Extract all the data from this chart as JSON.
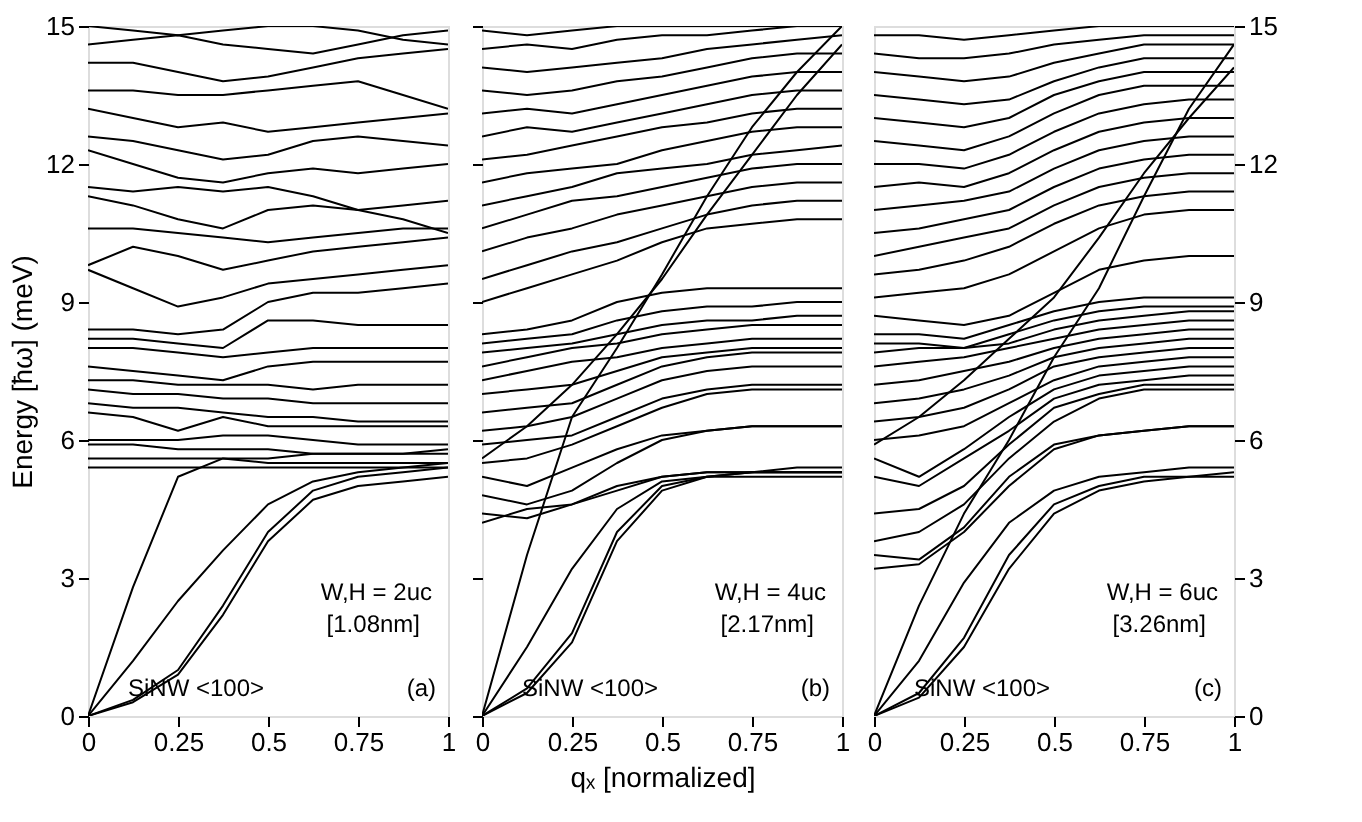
{
  "chart_data": [
    {
      "type": "line",
      "ylabel": "Energy [ħω] (meV)",
      "x": [
        0,
        0.125,
        0.25,
        0.375,
        0.5,
        0.625,
        0.75,
        0.875,
        1
      ],
      "xlim": [
        0,
        1
      ],
      "xticks": [
        0,
        0.25,
        0.5,
        0.75,
        1
      ],
      "ylim": [
        0,
        15
      ],
      "yticks": [
        0,
        3,
        6,
        9,
        12,
        15
      ],
      "grid": false,
      "marker": "none",
      "line_style": "solid",
      "annotations": [
        "W,H = 2uc",
        "[1.08nm]",
        "SiNW <100>",
        "(a)"
      ],
      "series": [
        {
          "color": "#000000",
          "values": [
            0,
            0.3,
            0.9,
            2.2,
            3.8,
            4.7,
            5.0,
            5.1,
            5.2
          ]
        },
        {
          "color": "#000000",
          "values": [
            0,
            0.35,
            1.0,
            2.4,
            4.0,
            4.9,
            5.2,
            5.3,
            5.4
          ]
        },
        {
          "color": "#000000",
          "values": [
            0,
            1.2,
            2.5,
            3.6,
            4.6,
            5.1,
            5.3,
            5.4,
            5.5
          ]
        },
        {
          "color": "#000000",
          "values": [
            0,
            2.8,
            5.2,
            5.6,
            5.6,
            5.7,
            5.7,
            5.7,
            5.8
          ]
        },
        {
          "color": "#000000",
          "values": [
            5.4,
            5.4,
            5.4,
            5.4,
            5.4,
            5.4,
            5.4,
            5.4,
            5.4
          ]
        },
        {
          "color": "#000000",
          "values": [
            5.6,
            5.6,
            5.6,
            5.6,
            5.5,
            5.5,
            5.5,
            5.5,
            5.5
          ]
        },
        {
          "color": "#000000",
          "values": [
            5.9,
            5.9,
            5.8,
            5.8,
            5.8,
            5.7,
            5.7,
            5.7,
            5.7
          ]
        },
        {
          "color": "#000000",
          "values": [
            6.0,
            6.0,
            6.0,
            6.1,
            6.1,
            6.0,
            5.9,
            5.9,
            5.9
          ]
        },
        {
          "color": "#000000",
          "values": [
            6.6,
            6.5,
            6.2,
            6.5,
            6.3,
            6.3,
            6.3,
            6.3,
            6.3
          ]
        },
        {
          "color": "#000000",
          "values": [
            6.8,
            6.7,
            6.7,
            6.6,
            6.5,
            6.5,
            6.4,
            6.4,
            6.4
          ]
        },
        {
          "color": "#000000",
          "values": [
            7.1,
            7.0,
            7.0,
            6.9,
            6.9,
            6.8,
            6.8,
            6.8,
            6.8
          ]
        },
        {
          "color": "#000000",
          "values": [
            7.3,
            7.3,
            7.2,
            7.2,
            7.2,
            7.1,
            7.2,
            7.2,
            7.2
          ]
        },
        {
          "color": "#000000",
          "values": [
            7.6,
            7.5,
            7.4,
            7.3,
            7.6,
            7.7,
            7.7,
            7.7,
            7.7
          ]
        },
        {
          "color": "#000000",
          "values": [
            8.0,
            8.0,
            7.9,
            7.8,
            7.9,
            8.0,
            8.0,
            8.0,
            8.0
          ]
        },
        {
          "color": "#000000",
          "values": [
            8.2,
            8.2,
            8.1,
            8.0,
            8.6,
            8.6,
            8.5,
            8.5,
            8.5
          ]
        },
        {
          "color": "#000000",
          "values": [
            8.4,
            8.4,
            8.3,
            8.4,
            9.0,
            9.2,
            9.2,
            9.3,
            9.4
          ]
        },
        {
          "color": "#000000",
          "values": [
            9.7,
            9.3,
            8.9,
            9.1,
            9.4,
            9.5,
            9.6,
            9.7,
            9.8
          ]
        },
        {
          "color": "#000000",
          "values": [
            9.8,
            10.2,
            10.0,
            9.7,
            9.9,
            10.1,
            10.2,
            10.3,
            10.4
          ]
        },
        {
          "color": "#000000",
          "values": [
            10.6,
            10.6,
            10.5,
            10.4,
            10.3,
            10.4,
            10.5,
            10.6,
            10.6
          ]
        },
        {
          "color": "#000000",
          "values": [
            11.3,
            11.1,
            10.8,
            10.6,
            11.0,
            11.1,
            11.0,
            11.1,
            11.2
          ]
        },
        {
          "color": "#000000",
          "values": [
            11.5,
            11.4,
            11.5,
            11.4,
            11.5,
            11.3,
            11.0,
            10.8,
            10.5
          ]
        },
        {
          "color": "#000000",
          "values": [
            12.3,
            12.0,
            11.7,
            11.6,
            11.8,
            11.9,
            11.8,
            11.9,
            12.0
          ]
        },
        {
          "color": "#000000",
          "values": [
            12.6,
            12.5,
            12.3,
            12.1,
            12.2,
            12.5,
            12.6,
            12.5,
            12.4
          ]
        },
        {
          "color": "#000000",
          "values": [
            13.2,
            13.0,
            12.8,
            12.9,
            12.7,
            12.8,
            12.9,
            13.0,
            13.1
          ]
        },
        {
          "color": "#000000",
          "values": [
            13.6,
            13.6,
            13.5,
            13.5,
            13.6,
            13.7,
            13.8,
            13.5,
            13.2
          ]
        },
        {
          "color": "#000000",
          "values": [
            14.2,
            14.2,
            14.0,
            13.8,
            13.9,
            14.1,
            14.3,
            14.4,
            14.5
          ]
        },
        {
          "color": "#000000",
          "values": [
            14.6,
            14.7,
            14.8,
            14.6,
            14.5,
            14.4,
            14.6,
            14.8,
            14.9
          ]
        },
        {
          "color": "#000000",
          "values": [
            15.0,
            14.9,
            14.8,
            14.9,
            15.0,
            15.0,
            14.9,
            14.7,
            14.6
          ]
        }
      ]
    },
    {
      "type": "line",
      "xlabel": "qₓ [normalized]",
      "x": [
        0,
        0.125,
        0.25,
        0.375,
        0.5,
        0.625,
        0.75,
        0.875,
        1
      ],
      "xlim": [
        0,
        1
      ],
      "xticks": [
        0,
        0.25,
        0.5,
        0.75,
        1
      ],
      "ylim": [
        0,
        15
      ],
      "yticks": [
        0,
        3,
        6,
        9,
        12,
        15
      ],
      "tick_labels": "x",
      "grid": false,
      "marker": "none",
      "line_style": "solid",
      "annotations": [
        "W,H = 4uc",
        "[2.17nm]",
        "SiNW <100>",
        "(b)"
      ],
      "series": [
        {
          "color": "#000000",
          "values": [
            0,
            0.5,
            1.6,
            3.8,
            4.9,
            5.2,
            5.3,
            5.3,
            5.3
          ]
        },
        {
          "color": "#000000",
          "values": [
            0,
            0.6,
            1.8,
            4.0,
            5.0,
            5.2,
            5.3,
            5.4,
            5.4
          ]
        },
        {
          "color": "#000000",
          "values": [
            0,
            1.5,
            3.2,
            4.5,
            5.1,
            5.2,
            5.2,
            5.2,
            5.2
          ]
        },
        {
          "color": "#000000",
          "values": [
            0,
            3.5,
            6.5,
            8.0,
            9.6,
            11.3,
            12.8,
            14.0,
            15.0
          ]
        },
        {
          "color": "#000000",
          "values": [
            4.2,
            4.5,
            4.6,
            4.9,
            5.2,
            5.3,
            5.3,
            5.3,
            5.3
          ]
        },
        {
          "color": "#000000",
          "values": [
            4.4,
            4.3,
            4.6,
            5.0,
            5.2,
            5.3,
            5.3,
            5.3,
            5.3
          ]
        },
        {
          "color": "#000000",
          "values": [
            4.8,
            4.6,
            4.9,
            5.5,
            6.0,
            6.2,
            6.3,
            6.3,
            6.3
          ]
        },
        {
          "color": "#000000",
          "values": [
            5.2,
            5.0,
            5.4,
            5.8,
            6.1,
            6.2,
            6.3,
            6.3,
            6.3
          ]
        },
        {
          "color": "#000000",
          "values": [
            5.5,
            5.6,
            5.9,
            6.3,
            6.7,
            7.0,
            7.1,
            7.1,
            7.1
          ]
        },
        {
          "color": "#000000",
          "values": [
            5.9,
            6.0,
            6.1,
            6.5,
            6.9,
            7.1,
            7.2,
            7.2,
            7.2
          ]
        },
        {
          "color": "#000000",
          "values": [
            6.2,
            6.3,
            6.5,
            6.9,
            7.3,
            7.5,
            7.6,
            7.6,
            7.6
          ]
        },
        {
          "color": "#000000",
          "values": [
            6.6,
            6.7,
            6.8,
            7.2,
            7.6,
            7.8,
            7.9,
            7.9,
            7.9
          ]
        },
        {
          "color": "#000000",
          "values": [
            7.0,
            7.1,
            7.2,
            7.5,
            7.8,
            7.9,
            8.0,
            8.0,
            8.0
          ]
        },
        {
          "color": "#000000",
          "values": [
            7.3,
            7.5,
            7.7,
            7.8,
            8.0,
            8.1,
            8.2,
            8.2,
            8.2
          ]
        },
        {
          "color": "#000000",
          "values": [
            7.6,
            7.8,
            8.0,
            8.1,
            8.3,
            8.4,
            8.5,
            8.5,
            8.5
          ]
        },
        {
          "color": "#000000",
          "values": [
            7.9,
            8.0,
            8.1,
            8.3,
            8.5,
            8.6,
            8.6,
            8.7,
            8.7
          ]
        },
        {
          "color": "#000000",
          "values": [
            8.1,
            8.2,
            8.3,
            8.6,
            8.8,
            8.9,
            8.9,
            9.0,
            9.0
          ]
        },
        {
          "color": "#000000",
          "values": [
            8.3,
            8.4,
            8.6,
            9.0,
            9.2,
            9.3,
            9.3,
            9.3,
            9.3
          ]
        },
        {
          "color": "#000000",
          "values": [
            9.0,
            9.3,
            9.6,
            9.9,
            10.3,
            10.6,
            10.7,
            10.8,
            10.8
          ]
        },
        {
          "color": "#000000",
          "values": [
            9.5,
            9.8,
            10.1,
            10.3,
            10.6,
            10.9,
            11.1,
            11.2,
            11.2
          ]
        },
        {
          "color": "#000000",
          "values": [
            10.1,
            10.4,
            10.6,
            10.9,
            11.1,
            11.3,
            11.5,
            11.6,
            11.6
          ]
        },
        {
          "color": "#000000",
          "values": [
            10.6,
            10.9,
            11.2,
            11.3,
            11.5,
            11.7,
            11.9,
            12.0,
            12.0
          ]
        },
        {
          "color": "#000000",
          "values": [
            11.1,
            11.3,
            11.5,
            11.8,
            11.9,
            12.0,
            12.2,
            12.3,
            12.4
          ]
        },
        {
          "color": "#000000",
          "values": [
            11.6,
            11.8,
            11.9,
            12.0,
            12.3,
            12.5,
            12.7,
            12.8,
            12.8
          ]
        },
        {
          "color": "#000000",
          "values": [
            12.1,
            12.2,
            12.4,
            12.6,
            12.8,
            12.9,
            13.1,
            13.2,
            13.2
          ]
        },
        {
          "color": "#000000",
          "values": [
            12.6,
            12.8,
            12.7,
            12.9,
            13.1,
            13.3,
            13.5,
            13.6,
            13.6
          ]
        },
        {
          "color": "#000000",
          "values": [
            13.1,
            13.2,
            13.1,
            13.3,
            13.5,
            13.7,
            13.9,
            14.0,
            14.0
          ]
        },
        {
          "color": "#000000",
          "values": [
            13.6,
            13.5,
            13.6,
            13.8,
            13.9,
            14.1,
            14.3,
            14.4,
            14.4
          ]
        },
        {
          "color": "#000000",
          "values": [
            14.1,
            14.0,
            14.1,
            14.2,
            14.3,
            14.5,
            14.6,
            14.7,
            14.8
          ]
        },
        {
          "color": "#000000",
          "values": [
            14.5,
            14.6,
            14.5,
            14.7,
            14.8,
            14.8,
            14.9,
            15.0,
            15.0
          ]
        },
        {
          "color": "#000000",
          "values": [
            14.9,
            14.8,
            14.9,
            15.0,
            15.0,
            15.0,
            15.0,
            15.0,
            15.0
          ]
        },
        {
          "color": "#000000",
          "values": [
            5.6,
            6.3,
            7.2,
            8.3,
            9.5,
            10.9,
            12.2,
            13.5,
            14.6
          ]
        }
      ]
    },
    {
      "type": "line",
      "x": [
        0,
        0.125,
        0.25,
        0.375,
        0.5,
        0.625,
        0.75,
        0.875,
        1
      ],
      "xlim": [
        0,
        1
      ],
      "xticks": [
        0,
        0.25,
        0.5,
        0.75,
        1
      ],
      "y2lim": [
        0,
        15
      ],
      "y2ticks": [
        0,
        3,
        6,
        9,
        12,
        15
      ],
      "grid": false,
      "marker": "none",
      "line_style": "solid",
      "annotations": [
        "W,H = 6uc",
        "[3.26nm]",
        "SiNW <100>",
        "(c)"
      ],
      "series": [
        {
          "axis": "y2",
          "color": "#000000",
          "values": [
            0,
            0.4,
            1.5,
            3.2,
            4.4,
            4.9,
            5.1,
            5.2,
            5.2
          ]
        },
        {
          "axis": "y2",
          "color": "#000000",
          "values": [
            0,
            0.5,
            1.7,
            3.5,
            4.6,
            5.0,
            5.2,
            5.2,
            5.3
          ]
        },
        {
          "axis": "y2",
          "color": "#000000",
          "values": [
            0,
            1.2,
            2.9,
            4.2,
            4.9,
            5.2,
            5.3,
            5.4,
            5.4
          ]
        },
        {
          "axis": "y2",
          "color": "#000000",
          "values": [
            0,
            2.4,
            4.4,
            6.0,
            7.8,
            9.3,
            11.3,
            13.2,
            14.6
          ]
        },
        {
          "axis": "y2",
          "color": "#000000",
          "values": [
            3.2,
            3.3,
            4.0,
            5.0,
            5.8,
            6.1,
            6.2,
            6.3,
            6.3
          ]
        },
        {
          "axis": "y2",
          "color": "#000000",
          "values": [
            3.5,
            3.4,
            4.1,
            5.2,
            5.9,
            6.1,
            6.2,
            6.3,
            6.3
          ]
        },
        {
          "axis": "y2",
          "color": "#000000",
          "values": [
            3.8,
            4.0,
            4.6,
            5.6,
            6.4,
            6.9,
            7.1,
            7.1,
            7.1
          ]
        },
        {
          "axis": "y2",
          "color": "#000000",
          "values": [
            4.4,
            4.5,
            5.0,
            5.9,
            6.7,
            7.0,
            7.2,
            7.2,
            7.2
          ]
        },
        {
          "axis": "y2",
          "color": "#000000",
          "values": [
            5.2,
            5.0,
            5.6,
            6.2,
            6.9,
            7.2,
            7.3,
            7.4,
            7.4
          ]
        },
        {
          "axis": "y2",
          "color": "#000000",
          "values": [
            5.6,
            5.2,
            5.8,
            6.5,
            7.1,
            7.4,
            7.5,
            7.6,
            7.6
          ]
        },
        {
          "axis": "y2",
          "color": "#000000",
          "values": [
            6.0,
            6.1,
            6.3,
            6.8,
            7.3,
            7.6,
            7.7,
            7.8,
            7.8
          ]
        },
        {
          "axis": "y2",
          "color": "#000000",
          "values": [
            6.4,
            6.5,
            6.7,
            7.1,
            7.6,
            7.8,
            7.9,
            8.0,
            8.0
          ]
        },
        {
          "axis": "y2",
          "color": "#000000",
          "values": [
            6.8,
            6.9,
            7.1,
            7.4,
            7.8,
            8.0,
            8.1,
            8.2,
            8.2
          ]
        },
        {
          "axis": "y2",
          "color": "#000000",
          "values": [
            7.2,
            7.3,
            7.5,
            7.7,
            8.0,
            8.2,
            8.3,
            8.4,
            8.4
          ]
        },
        {
          "axis": "y2",
          "color": "#000000",
          "values": [
            7.6,
            7.7,
            7.8,
            8.0,
            8.2,
            8.4,
            8.5,
            8.6,
            8.6
          ]
        },
        {
          "axis": "y2",
          "color": "#000000",
          "values": [
            7.9,
            8.0,
            8.0,
            8.1,
            8.4,
            8.6,
            8.7,
            8.8,
            8.8
          ]
        },
        {
          "axis": "y2",
          "color": "#000000",
          "values": [
            8.1,
            8.1,
            8.0,
            8.3,
            8.6,
            8.8,
            8.9,
            8.9,
            8.9
          ]
        },
        {
          "axis": "y2",
          "color": "#000000",
          "values": [
            8.3,
            8.3,
            8.2,
            8.5,
            8.8,
            9.0,
            9.1,
            9.1,
            9.1
          ]
        },
        {
          "axis": "y2",
          "color": "#000000",
          "values": [
            8.7,
            8.6,
            8.5,
            8.7,
            9.2,
            9.7,
            9.9,
            10.0,
            10.0
          ]
        },
        {
          "axis": "y2",
          "color": "#000000",
          "values": [
            9.1,
            9.2,
            9.3,
            9.6,
            10.1,
            10.6,
            10.9,
            11.0,
            11.0
          ]
        },
        {
          "axis": "y2",
          "color": "#000000",
          "values": [
            9.6,
            9.7,
            9.9,
            10.2,
            10.7,
            11.1,
            11.3,
            11.4,
            11.4
          ]
        },
        {
          "axis": "y2",
          "color": "#000000",
          "values": [
            10.0,
            10.2,
            10.4,
            10.6,
            11.1,
            11.5,
            11.7,
            11.8,
            11.8
          ]
        },
        {
          "axis": "y2",
          "color": "#000000",
          "values": [
            10.5,
            10.6,
            10.8,
            11.0,
            11.5,
            11.9,
            12.1,
            12.2,
            12.2
          ]
        },
        {
          "axis": "y2",
          "color": "#000000",
          "values": [
            11.0,
            11.1,
            11.2,
            11.4,
            11.9,
            12.3,
            12.5,
            12.6,
            12.6
          ]
        },
        {
          "axis": "y2",
          "color": "#000000",
          "values": [
            11.5,
            11.6,
            11.5,
            11.8,
            12.3,
            12.7,
            12.9,
            13.0,
            13.0
          ]
        },
        {
          "axis": "y2",
          "color": "#000000",
          "values": [
            12.0,
            12.0,
            11.9,
            12.2,
            12.7,
            13.1,
            13.3,
            13.4,
            13.4
          ]
        },
        {
          "axis": "y2",
          "color": "#000000",
          "values": [
            12.5,
            12.4,
            12.3,
            12.6,
            13.1,
            13.5,
            13.7,
            13.7,
            13.7
          ]
        },
        {
          "axis": "y2",
          "color": "#000000",
          "values": [
            13.0,
            12.9,
            12.8,
            13.0,
            13.5,
            13.8,
            14.0,
            14.0,
            14.0
          ]
        },
        {
          "axis": "y2",
          "color": "#000000",
          "values": [
            13.5,
            13.4,
            13.3,
            13.4,
            13.8,
            14.1,
            14.3,
            14.3,
            14.3
          ]
        },
        {
          "axis": "y2",
          "color": "#000000",
          "values": [
            14.0,
            13.9,
            13.8,
            13.9,
            14.2,
            14.4,
            14.6,
            14.6,
            14.6
          ]
        },
        {
          "axis": "y2",
          "color": "#000000",
          "values": [
            14.4,
            14.3,
            14.3,
            14.4,
            14.6,
            14.7,
            14.8,
            14.8,
            14.8
          ]
        },
        {
          "axis": "y2",
          "color": "#000000",
          "values": [
            14.8,
            14.8,
            14.7,
            14.8,
            14.9,
            15.0,
            15.0,
            15.0,
            15.0
          ]
        },
        {
          "axis": "y2",
          "color": "#000000",
          "values": [
            5.9,
            6.5,
            7.3,
            8.2,
            9.1,
            10.4,
            11.8,
            13.0,
            14.1
          ]
        }
      ]
    }
  ]
}
